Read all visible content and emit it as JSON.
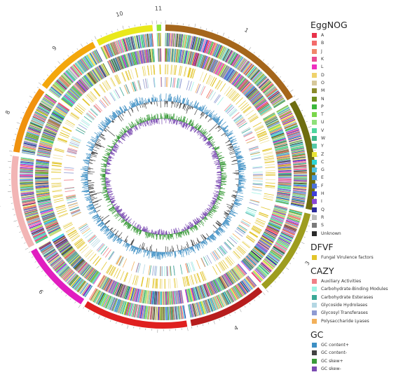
{
  "diagram": {
    "chromosomes": [
      {
        "label": "1",
        "color": "#a5661b",
        "len": 1.0
      },
      {
        "label": "2",
        "color": "#6e6d10",
        "len": 0.74
      },
      {
        "label": "3",
        "color": "#9e9d1f",
        "len": 0.58
      },
      {
        "label": "4",
        "color": "#b71d1d",
        "len": 0.52
      },
      {
        "label": "5",
        "color": "#df2020",
        "len": 0.7
      },
      {
        "label": "6",
        "color": "#e11ec0",
        "len": 0.48
      },
      {
        "label": "7",
        "color": "#f2b5b5",
        "len": 0.62
      },
      {
        "label": "8",
        "color": "#f0920e",
        "len": 0.45
      },
      {
        "label": "9",
        "color": "#f3a70c",
        "len": 0.44
      },
      {
        "label": "10",
        "color": "#e9e81b",
        "len": 0.38
      },
      {
        "label": "11",
        "color": "#8fe43a",
        "len": 0.03
      }
    ]
  },
  "legend": {
    "eggnog": {
      "title": "EggNOG",
      "items": [
        {
          "label": "A",
          "color": "#e8324a"
        },
        {
          "label": "B",
          "color": "#f36b6b"
        },
        {
          "label": "J",
          "color": "#f0866a"
        },
        {
          "label": "K",
          "color": "#e84b93"
        },
        {
          "label": "L",
          "color": "#ef2fc0"
        },
        {
          "label": "D",
          "color": "#efd26c"
        },
        {
          "label": "O",
          "color": "#d6c89a"
        },
        {
          "label": "M",
          "color": "#8a8a2b"
        },
        {
          "label": "N",
          "color": "#6f8f1f"
        },
        {
          "label": "P",
          "color": "#3bb83b"
        },
        {
          "label": "T",
          "color": "#7ad64b"
        },
        {
          "label": "U",
          "color": "#8ee07a"
        },
        {
          "label": "V",
          "color": "#4ed69e"
        },
        {
          "label": "W",
          "color": "#3cb88a"
        },
        {
          "label": "Y",
          "color": "#55c9a9"
        },
        {
          "label": "Z",
          "color": "#e8e334"
        },
        {
          "label": "C",
          "color": "#2ed3d3"
        },
        {
          "label": "G",
          "color": "#52c2e0"
        },
        {
          "label": "E",
          "color": "#4b9ad6"
        },
        {
          "label": "F",
          "color": "#4f72d8"
        },
        {
          "label": "H",
          "color": "#3f3fd9"
        },
        {
          "label": "I",
          "color": "#8a47d8"
        },
        {
          "label": "Q",
          "color": "#2a2a9c"
        },
        {
          "label": "R",
          "color": "#bdbdbd"
        },
        {
          "label": "S",
          "color": "#7a7a7a"
        },
        {
          "label": "Unknown",
          "color": "#2a2a2a"
        }
      ]
    },
    "dfvf": {
      "title": "DFVF",
      "items": [
        {
          "label": "Fungal Virulence factors",
          "color": "#e2c52a"
        }
      ]
    },
    "cazy": {
      "title": "CAZY",
      "items": [
        {
          "label": "Auxiliary Activities",
          "color": "#f07f86"
        },
        {
          "label": "Carbohydrate-Binding Modules",
          "color": "#9df2e4"
        },
        {
          "label": "Carbohydrate Esterases",
          "color": "#3aa896"
        },
        {
          "label": "Glycoside Hydrolases",
          "color": "#b4d7e3"
        },
        {
          "label": "Glycosyl Transferases",
          "color": "#8e9ad2"
        },
        {
          "label": "Polysaccharide Lyases",
          "color": "#f2b05a"
        }
      ]
    },
    "gc": {
      "title": "GC",
      "items": [
        {
          "label": "GC content+",
          "color": "#3d8fc4"
        },
        {
          "label": "GC content-",
          "color": "#424242"
        },
        {
          "label": "GC skew+",
          "color": "#3a9b3a"
        },
        {
          "label": "GC skew-",
          "color": "#7b4bb2"
        }
      ]
    }
  }
}
